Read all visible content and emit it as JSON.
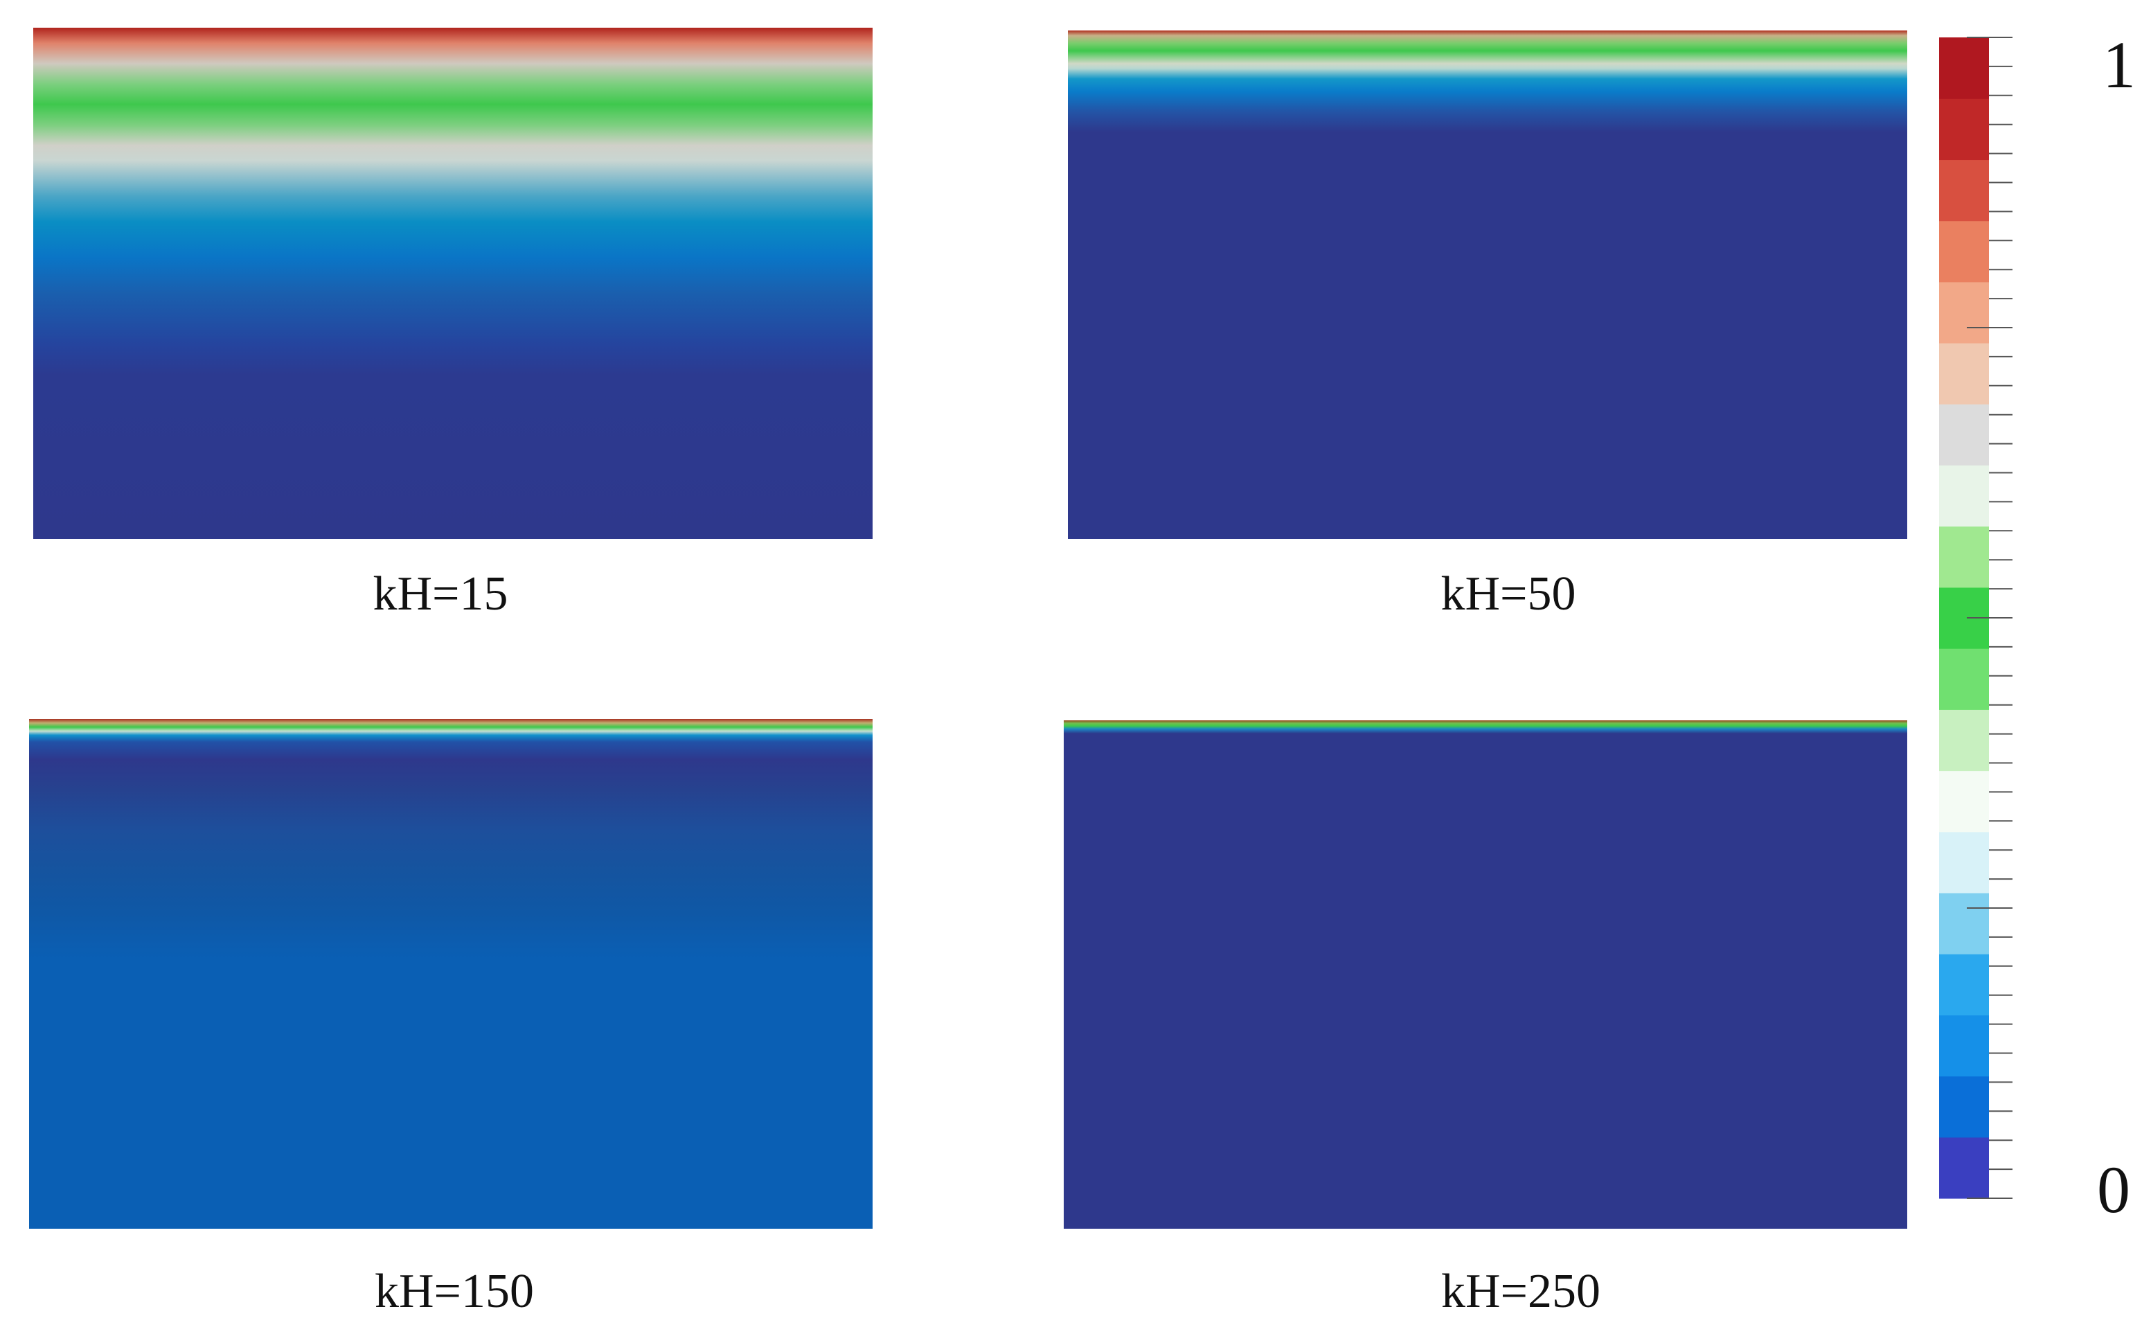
{
  "chart_data": [
    {
      "type": "heatmap",
      "panel": "kH=15",
      "caption": "kH=15",
      "value_range": [
        0,
        1
      ],
      "colormap": "rainbow-desaturated (blue-cyan-green-white-red)"
    },
    {
      "type": "heatmap",
      "panel": "kH=50",
      "caption": "kH=50",
      "value_range": [
        0,
        1
      ],
      "colormap": "rainbow-desaturated (blue-cyan-green-white-red)"
    },
    {
      "type": "heatmap",
      "panel": "kH=150",
      "caption": "kH=150",
      "value_range": [
        0,
        1
      ],
      "colormap": "rainbow-desaturated (blue-cyan-green-white-red)"
    },
    {
      "type": "heatmap",
      "panel": "kH=250",
      "caption": "kH=250",
      "value_range": [
        0,
        1
      ],
      "colormap": "rainbow-desaturated (blue-cyan-green-white-red)"
    }
  ],
  "colorbar": {
    "max_label": "1",
    "min_label": "0",
    "colors": [
      "#3a3fc0",
      "#0a6fd8",
      "#1590e8",
      "#2aa8ee",
      "#7fd0f0",
      "#d8f2f8",
      "#f4fbf4",
      "#c8f0c0",
      "#70e070",
      "#38d048",
      "#a0e890",
      "#e8f4e8",
      "#dcdcdc",
      "#f0c8b0",
      "#f2a888",
      "#ea8060",
      "#d85040",
      "#c02828",
      "#b01820"
    ]
  },
  "panels": [
    {
      "caption": "kH=15",
      "gradient": [
        "#b0241d 0%",
        "#e0826a 3%",
        "#cfc9bf 7%",
        "#7ccf7f 11%",
        "#3ec84d 15%",
        "#7ccf7f 19%",
        "#d0d0c8 23%",
        "#c9d6d2 26%",
        "#4aa5c6 33%",
        "#0a8ec4 38%",
        "#0a75c6 45%",
        "#1a5fae 52%",
        "#25449e 62%",
        "#2c3a90 68%",
        "#2e388c 100%"
      ]
    },
    {
      "caption": "kH=50",
      "gradient": [
        "#b03020 0%",
        "#c8b088 1%",
        "#7acd6d 2.5%",
        "#3ec84d 4%",
        "#d0d8c6 6.5%",
        "#b6d7d1 7.5%",
        "#1498c9 9.5%",
        "#0a7cca 12%",
        "#2354a6 16%",
        "#2e388c 20%",
        "#2e388c 100%"
      ]
    },
    {
      "caption": "kH=150",
      "gradient": [
        "#a83020 0%",
        "#c0b070 0.8%",
        "#3ec84d 1.6%",
        "#c8e0d0 2.4%",
        "#1090cc 3.2%",
        "#2152a8 4.5%",
        "#2e388c 8%",
        "#26428f 14%",
        "#1d4f9c 22%",
        "#15549f 30%",
        "#0f58a6 38%",
        "#0a5fb4 47%",
        "#0a5fb4 100%"
      ]
    },
    {
      "caption": "kH=250",
      "gradient": [
        "#9c4a20 0%",
        "#70c050 0.6%",
        "#3ec84d 1.1%",
        "#1b86c4 1.7%",
        "#2e388c 2.6%",
        "#2e388c 100%"
      ]
    }
  ]
}
